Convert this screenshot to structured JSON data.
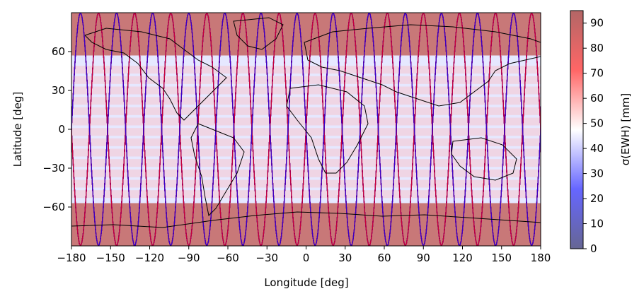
{
  "chart_data": {
    "type": "heatmap",
    "title": "",
    "xlabel": "Longitude [deg]",
    "ylabel": "Latitude [deg]",
    "xlim": [
      -180,
      180
    ],
    "ylim": [
      -90,
      90
    ],
    "x_ticks": [
      -180,
      -150,
      -120,
      -90,
      -60,
      -30,
      0,
      30,
      60,
      90,
      120,
      150,
      180
    ],
    "x_tick_labels": [
      "−180",
      "−150",
      "−120",
      "−90",
      "−60",
      "−30",
      "0",
      "30",
      "60",
      "90",
      "120",
      "150",
      "180"
    ],
    "y_ticks": [
      60,
      30,
      0,
      -30,
      -60
    ],
    "y_tick_labels": [
      "60",
      "30",
      "0",
      "−30",
      "−60"
    ],
    "grid": false,
    "colorbar": {
      "label": "σ(EWH) [mm]",
      "range": [
        0,
        95
      ],
      "ticks": [
        0,
        10,
        20,
        30,
        40,
        50,
        60,
        70,
        80,
        90
      ],
      "tick_labels": [
        "0",
        "10",
        "20",
        "30",
        "40",
        "50",
        "60",
        "70",
        "80",
        "90"
      ],
      "colormap": "seismic",
      "alpha": 0.6
    },
    "field": {
      "description_values": "sigma EWH high (≈90) at |lat|>60, lower (≈10–40) at mid latitudes",
      "band_value_high_latitudes": 90,
      "band_value_mid_latitudes": 20
    },
    "ground_tracks": {
      "ascending_color": "#ff0000",
      "descending_color": "#0000ff",
      "max_latitude": 90,
      "tracks_per_360deg": 26
    },
    "colors": {
      "high": "#b40426",
      "low": "#3b4cc0"
    }
  }
}
